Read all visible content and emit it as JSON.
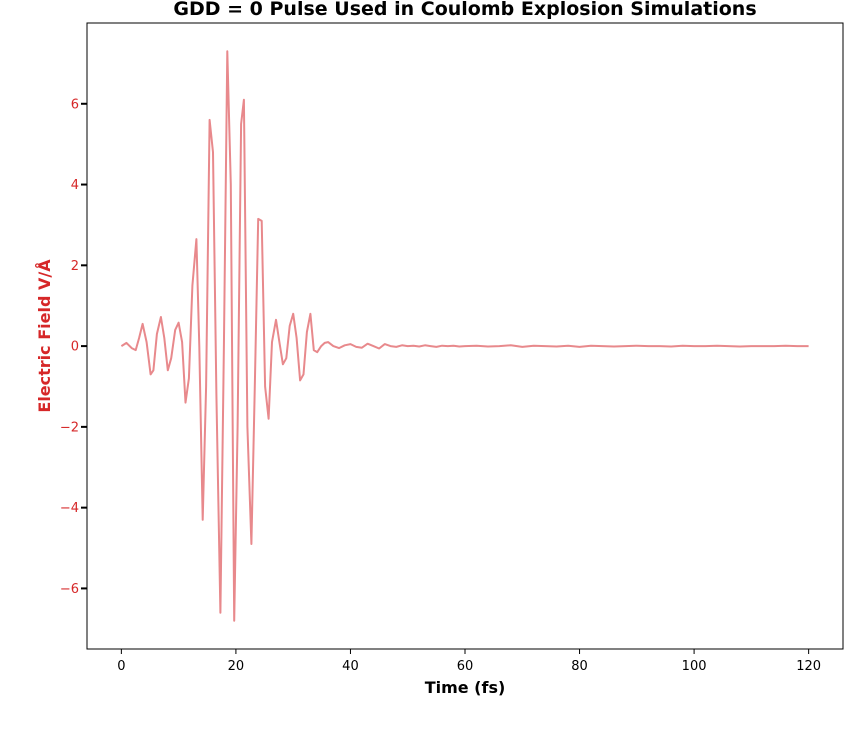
{
  "chart_data": {
    "type": "line",
    "title": "GDD = 0 Pulse Used in Coulomb Explosion Simulations",
    "xlabel": "Time (fs)",
    "ylabel": "Electric Field V/Å",
    "xlim": [
      -6,
      126
    ],
    "ylim": [
      -7.5,
      8.0
    ],
    "grid": false,
    "legend": "none",
    "x_ticks": [
      0,
      20,
      40,
      60,
      80,
      100,
      120
    ],
    "x_tick_labels": [
      "0",
      "20",
      "40",
      "60",
      "80",
      "100",
      "120"
    ],
    "y_ticks": [
      -6,
      -4,
      -2,
      0,
      2,
      4,
      6
    ],
    "y_tick_labels": [
      "−6",
      "−4",
      "−2",
      "0",
      "2",
      "4",
      "6"
    ],
    "colors": {
      "line": "#e8898c",
      "ylabel": "#d62728",
      "ytick_label": "#d62728",
      "xtick_label": "#000000"
    },
    "series": [
      {
        "x": [
          0,
          0.9,
          1.8,
          2.5,
          3.1,
          3.7,
          4.4,
          5.1,
          5.6,
          6.2,
          6.9,
          7.5,
          8.1,
          8.7,
          9.4,
          10.0,
          10.6,
          11.2,
          11.8,
          12.4,
          13.1,
          13.6,
          14.2,
          14.8,
          15.4,
          16.0,
          16.6,
          17.3,
          17.9,
          18.5,
          19.1,
          19.7,
          20.3,
          20.9,
          21.4,
          22.0,
          22.7,
          23.3,
          23.9,
          24.5,
          25.1,
          25.7,
          26.3,
          27.0,
          27.6,
          28.2,
          28.8,
          29.4,
          30.0,
          30.6,
          31.2,
          31.8,
          32.4,
          33.0,
          33.6,
          34.2,
          34.9,
          35.5,
          36.1,
          37.0,
          38.0,
          39.0,
          40.0,
          41.0,
          42.0,
          43.0,
          44.0,
          45.0,
          46.0,
          47.0,
          48.0,
          49.0,
          50.0,
          51.0,
          52.0,
          53.0,
          54.0,
          55.0,
          56.0,
          57.0,
          58.0,
          59.0,
          60.0,
          62.0,
          64.0,
          66.0,
          68.0,
          70.0,
          72.0,
          74.0,
          76.0,
          78.0,
          80.0,
          82.0,
          84.0,
          86.0,
          88.0,
          90.0,
          92.0,
          94.0,
          96.0,
          98.0,
          100.0,
          102.0,
          104.0,
          106.0,
          108.0,
          110.0,
          112.0,
          114.0,
          116.0,
          118.0,
          120.0
        ],
        "y": [
          0.0,
          0.08,
          -0.05,
          -0.1,
          0.2,
          0.55,
          0.1,
          -0.7,
          -0.6,
          0.3,
          0.72,
          0.2,
          -0.6,
          -0.3,
          0.4,
          0.58,
          0.1,
          -1.4,
          -0.8,
          1.5,
          2.65,
          0.0,
          -4.3,
          -1.0,
          5.6,
          4.8,
          -1.2,
          -6.6,
          0.0,
          7.3,
          4.0,
          -6.8,
          -2.0,
          5.5,
          6.1,
          -2.0,
          -4.9,
          -1.0,
          3.15,
          3.1,
          -1.0,
          -1.8,
          0.1,
          0.65,
          0.1,
          -0.45,
          -0.3,
          0.5,
          0.8,
          0.2,
          -0.85,
          -0.7,
          0.35,
          0.8,
          -0.1,
          -0.15,
          0.0,
          0.08,
          0.1,
          0.0,
          -0.05,
          0.02,
          0.05,
          -0.02,
          -0.04,
          0.06,
          0.0,
          -0.06,
          0.05,
          0.0,
          -0.02,
          0.02,
          0.0,
          0.01,
          -0.01,
          0.02,
          0.0,
          -0.02,
          0.01,
          0.0,
          0.01,
          -0.01,
          0.0,
          0.01,
          -0.01,
          0.0,
          0.02,
          -0.02,
          0.01,
          0.0,
          -0.01,
          0.01,
          -0.02,
          0.01,
          0.0,
          -0.01,
          0.0,
          0.01,
          0.0,
          0.0,
          -0.01,
          0.01,
          0.0,
          0.0,
          0.01,
          0.0,
          -0.01,
          0.0,
          0.0,
          0.0,
          0.01,
          0.0,
          0.0
        ]
      }
    ]
  }
}
